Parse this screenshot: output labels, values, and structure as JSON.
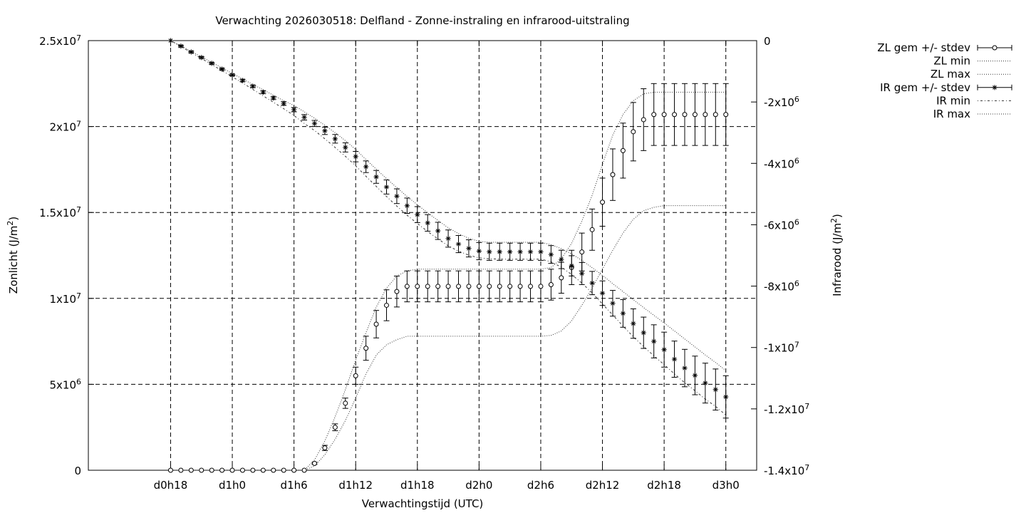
{
  "chart_data": {
    "type": "line",
    "title": "Verwachting 2026030518: Delfland - Zonne-instraling en infrarood-uitstraling",
    "xlabel": "Verwachtingstijd (UTC)",
    "ylabel_left": {
      "base": "Zonlicht (J/m",
      "sup": "2",
      "end": ")"
    },
    "ylabel_right": {
      "base": "Infrarood (J/m",
      "sup": "2",
      "end": ")"
    },
    "x_range_hours": [
      -8,
      57
    ],
    "y_left_range": [
      0,
      25000000
    ],
    "y_right_range": [
      -14000000,
      0
    ],
    "x_ticks": [
      {
        "h": 0,
        "label": "d0h18"
      },
      {
        "h": 6,
        "label": "d1h0"
      },
      {
        "h": 12,
        "label": "d1h6"
      },
      {
        "h": 18,
        "label": "d1h12"
      },
      {
        "h": 24,
        "label": "d1h18"
      },
      {
        "h": 30,
        "label": "d2h0"
      },
      {
        "h": 36,
        "label": "d2h6"
      },
      {
        "h": 42,
        "label": "d2h12"
      },
      {
        "h": 48,
        "label": "d2h18"
      },
      {
        "h": 54,
        "label": "d3h0"
      }
    ],
    "y_left_ticks": [
      {
        "v": 0,
        "base": "0",
        "sup": ""
      },
      {
        "v": 5000000,
        "base": "5x10",
        "sup": "6"
      },
      {
        "v": 10000000,
        "base": "1x10",
        "sup": "7"
      },
      {
        "v": 15000000,
        "base": "1.5x10",
        "sup": "7"
      },
      {
        "v": 20000000,
        "base": "2x10",
        "sup": "7"
      },
      {
        "v": 25000000,
        "base": "2.5x10",
        "sup": "7"
      }
    ],
    "y_right_ticks": [
      {
        "v": 0,
        "base": "0",
        "sup": ""
      },
      {
        "v": -2000000,
        "base": "-2x10",
        "sup": "6"
      },
      {
        "v": -4000000,
        "base": "-4x10",
        "sup": "6"
      },
      {
        "v": -6000000,
        "base": "-6x10",
        "sup": "6"
      },
      {
        "v": -8000000,
        "base": "-8x10",
        "sup": "6"
      },
      {
        "v": -10000000,
        "base": "-1x10",
        "sup": "7"
      },
      {
        "v": -12000000,
        "base": "-1.2x10",
        "sup": "7"
      },
      {
        "v": -14000000,
        "base": "-1.4x10",
        "sup": "7"
      }
    ],
    "grid": true,
    "legend_position": "outside right, top",
    "legend": [
      {
        "label": "ZL gem +/- stdev",
        "style": "errorbar-circle"
      },
      {
        "label": "ZL min",
        "style": "dotted"
      },
      {
        "label": "ZL max",
        "style": "dotted"
      },
      {
        "label": "IR gem +/- stdev",
        "style": "errorbar-star"
      },
      {
        "label": "IR min",
        "style": "dash-dot"
      },
      {
        "label": "IR max",
        "style": "dotted"
      }
    ],
    "x_hours": [
      0,
      1,
      2,
      3,
      4,
      5,
      6,
      7,
      8,
      9,
      10,
      11,
      12,
      13,
      14,
      15,
      16,
      17,
      18,
      19,
      20,
      21,
      22,
      23,
      24,
      25,
      26,
      27,
      28,
      29,
      30,
      31,
      32,
      33,
      34,
      35,
      36,
      37,
      38,
      39,
      40,
      41,
      42,
      43,
      44,
      45,
      46,
      47,
      48,
      49,
      50,
      51,
      52,
      53,
      54
    ],
    "zl_mean": [
      0,
      0,
      0,
      0,
      0,
      0,
      0,
      0,
      0,
      0,
      0,
      0,
      0,
      0,
      400000,
      1300000,
      2500000,
      3900000,
      5500000,
      7100000,
      8500000,
      9600000,
      10400000,
      10700000,
      10700000,
      10700000,
      10700000,
      10700000,
      10700000,
      10700000,
      10700000,
      10700000,
      10700000,
      10700000,
      10700000,
      10700000,
      10700000,
      10800000,
      11200000,
      11800000,
      12700000,
      14000000,
      15600000,
      17200000,
      18600000,
      19700000,
      20400000,
      20700000,
      20700000,
      20700000,
      20700000,
      20700000,
      20700000,
      20700000,
      20700000
    ],
    "zl_stdev": [
      0,
      0,
      0,
      0,
      0,
      0,
      0,
      0,
      0,
      0,
      0,
      0,
      0,
      0,
      60000,
      150000,
      200000,
      300000,
      500000,
      700000,
      800000,
      900000,
      900000,
      900000,
      900000,
      900000,
      900000,
      900000,
      900000,
      900000,
      900000,
      900000,
      900000,
      900000,
      900000,
      900000,
      900000,
      900000,
      900000,
      1000000,
      1100000,
      1200000,
      1400000,
      1500000,
      1600000,
      1700000,
      1800000,
      1800000,
      1800000,
      1800000,
      1800000,
      1800000,
      1800000,
      1800000,
      1800000
    ],
    "zl_min": [
      0,
      0,
      0,
      0,
      0,
      0,
      0,
      0,
      0,
      0,
      0,
      0,
      0,
      0,
      250000,
      900000,
      1800000,
      2900000,
      4200000,
      5600000,
      6700000,
      7300000,
      7600000,
      7800000,
      7800000,
      7800000,
      7800000,
      7800000,
      7800000,
      7800000,
      7800000,
      7800000,
      7800000,
      7800000,
      7800000,
      7800000,
      7800000,
      7850000,
      8100000,
      8700000,
      9600000,
      10600000,
      11700000,
      12800000,
      13800000,
      14600000,
      15100000,
      15300000,
      15400000,
      15400000,
      15400000,
      15400000,
      15400000,
      15400000,
      15400000
    ],
    "zl_max": [
      0,
      0,
      0,
      0,
      0,
      0,
      0,
      0,
      0,
      0,
      0,
      0,
      0,
      0,
      600000,
      1700000,
      3100000,
      4700000,
      6400000,
      8000000,
      9500000,
      10600000,
      11300000,
      11600000,
      11700000,
      11700000,
      11700000,
      11700000,
      11700000,
      11700000,
      11700000,
      11700000,
      11700000,
      11700000,
      11700000,
      11700000,
      11700000,
      11800000,
      12300000,
      13200000,
      14500000,
      16000000,
      17800000,
      19500000,
      20700000,
      21500000,
      21900000,
      22000000,
      22000000,
      22000000,
      22000000,
      22000000,
      22000000,
      22000000,
      22000000
    ],
    "ir_mean": [
      0,
      -180000,
      -370000,
      -550000,
      -740000,
      -930000,
      -1120000,
      -1300000,
      -1490000,
      -1680000,
      -1870000,
      -2050000,
      -2250000,
      -2500000,
      -2700000,
      -2940000,
      -3200000,
      -3480000,
      -3780000,
      -4110000,
      -4440000,
      -4770000,
      -5070000,
      -5380000,
      -5670000,
      -5940000,
      -6200000,
      -6450000,
      -6630000,
      -6770000,
      -6860000,
      -6880000,
      -6880000,
      -6880000,
      -6880000,
      -6880000,
      -6880000,
      -6970000,
      -7130000,
      -7340000,
      -7590000,
      -7900000,
      -8230000,
      -8560000,
      -8890000,
      -9220000,
      -9520000,
      -9800000,
      -10070000,
      -10380000,
      -10670000,
      -10910000,
      -11160000,
      -11370000,
      -11610000
    ],
    "ir_stdev": [
      0,
      30000,
      30000,
      30000,
      30000,
      30000,
      30000,
      40000,
      40000,
      50000,
      50000,
      60000,
      70000,
      90000,
      100000,
      120000,
      140000,
      150000,
      170000,
      190000,
      210000,
      230000,
      240000,
      250000,
      260000,
      270000,
      280000,
      280000,
      280000,
      280000,
      280000,
      280000,
      280000,
      280000,
      280000,
      280000,
      280000,
      290000,
      300000,
      330000,
      360000,
      380000,
      400000,
      420000,
      450000,
      480000,
      510000,
      540000,
      570000,
      590000,
      610000,
      630000,
      650000,
      670000,
      690000
    ],
    "ir_min": [
      0,
      -190000,
      -390000,
      -580000,
      -780000,
      -980000,
      -1180000,
      -1380000,
      -1590000,
      -1800000,
      -2010000,
      -2220000,
      -2440000,
      -2700000,
      -2930000,
      -3200000,
      -3480000,
      -3770000,
      -4080000,
      -4420000,
      -4750000,
      -5080000,
      -5390000,
      -5690000,
      -5960000,
      -6220000,
      -6460000,
      -6690000,
      -6860000,
      -6990000,
      -7080000,
      -7110000,
      -7120000,
      -7120000,
      -7120000,
      -7120000,
      -7120000,
      -7210000,
      -7380000,
      -7620000,
      -7900000,
      -8220000,
      -8580000,
      -8940000,
      -9300000,
      -9650000,
      -9970000,
      -10270000,
      -10560000,
      -10860000,
      -11150000,
      -11410000,
      -11680000,
      -11920000,
      -12200000
    ],
    "ir_max": [
      0,
      -170000,
      -350000,
      -530000,
      -710000,
      -890000,
      -1070000,
      -1250000,
      -1430000,
      -1600000,
      -1780000,
      -1960000,
      -2110000,
      -2320000,
      -2530000,
      -2760000,
      -3000000,
      -3260000,
      -3550000,
      -3870000,
      -4190000,
      -4500000,
      -4790000,
      -5080000,
      -5350000,
      -5610000,
      -5860000,
      -6100000,
      -6290000,
      -6440000,
      -6540000,
      -6570000,
      -6570000,
      -6570000,
      -6570000,
      -6570000,
      -6570000,
      -6650000,
      -6780000,
      -6950000,
      -7160000,
      -7400000,
      -7650000,
      -7920000,
      -8180000,
      -8440000,
      -8700000,
      -8950000,
      -9200000,
      -9460000,
      -9720000,
      -9980000,
      -10240000,
      -10490000,
      -10750000
    ]
  }
}
